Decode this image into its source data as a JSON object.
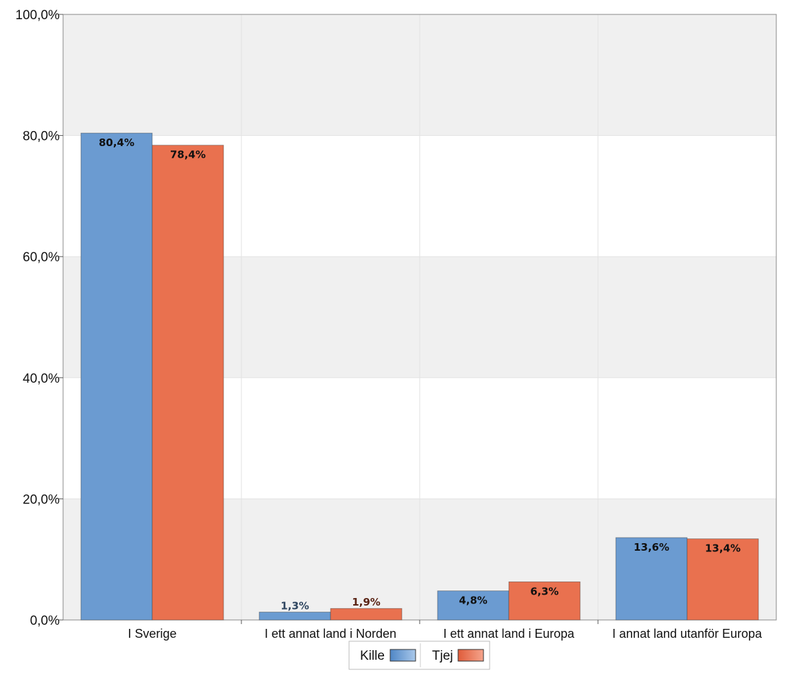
{
  "chart_data": {
    "type": "bar",
    "categories": [
      "I Sverige",
      "I ett annat land i Norden",
      "I ett annat land i Europa",
      "I annat land utanför Europa"
    ],
    "series": [
      {
        "name": "Kille",
        "values": [
          80.4,
          1.3,
          4.8,
          13.6
        ],
        "labels": [
          "80,4%",
          "1,3%",
          "4,8%",
          "13,6%"
        ],
        "color": "#6b9bd1",
        "label_color_inside": "#111111",
        "label_color_outside": "#2f4660"
      },
      {
        "name": "Tjej",
        "values": [
          78.4,
          1.9,
          6.3,
          13.4
        ],
        "labels": [
          "78,4%",
          "1,9%",
          "6,3%",
          "13,4%"
        ],
        "color": "#e9714f",
        "label_color_inside": "#111111",
        "label_color_outside": "#5a2415"
      }
    ],
    "yticks": [
      "0,0%",
      "20,0%",
      "40,0%",
      "60,0%",
      "80,0%",
      "100,0%"
    ],
    "ytick_values": [
      0,
      20,
      40,
      60,
      80,
      100
    ],
    "ylim": [
      0,
      100
    ],
    "grid": true,
    "legend": "bottom-center",
    "title": "",
    "xlabel": "",
    "ylabel": ""
  }
}
